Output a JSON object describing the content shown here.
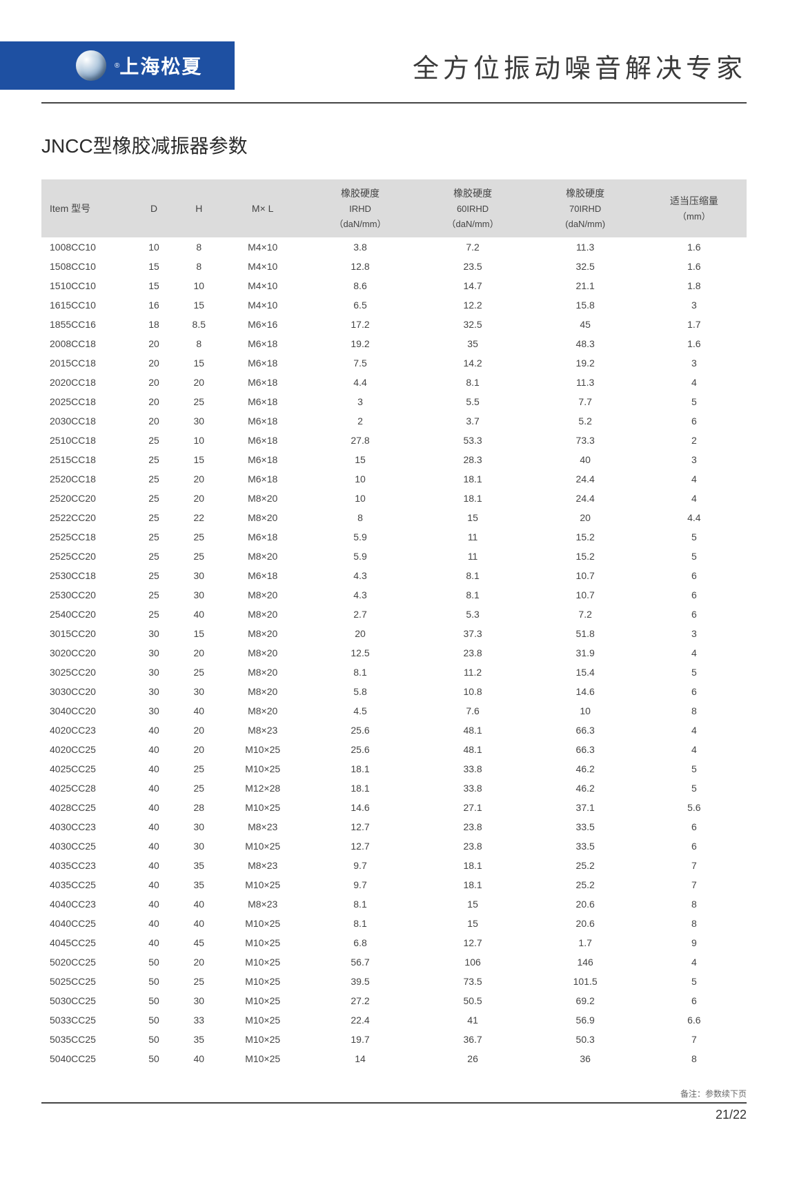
{
  "header": {
    "brand": "上海松夏",
    "reg": "®",
    "tagline": "全方位振动噪音解决专家"
  },
  "title": "JNCC型橡胶减振器参数",
  "table": {
    "columns": [
      {
        "label": "Item 型号",
        "sub": ""
      },
      {
        "label": "D",
        "sub": ""
      },
      {
        "label": "H",
        "sub": ""
      },
      {
        "label": "M× L",
        "sub": ""
      },
      {
        "label": "橡胶硬度",
        "sub2": "IRHD",
        "sub3": "（daN/mm）"
      },
      {
        "label": "橡胶硬度",
        "sub2": "60IRHD",
        "sub3": "（daN/mm）"
      },
      {
        "label": "橡胶硬度",
        "sub2": "70IRHD",
        "sub3": "(daN/mm)"
      },
      {
        "label": "适当压缩量",
        "sub3": "（mm）"
      }
    ],
    "rows": [
      [
        "1008CC10",
        "10",
        "8",
        "M4×10",
        "3.8",
        "7.2",
        "11.3",
        "1.6"
      ],
      [
        "1508CC10",
        "15",
        "8",
        "M4×10",
        "12.8",
        "23.5",
        "32.5",
        "1.6"
      ],
      [
        "1510CC10",
        "15",
        "10",
        "M4×10",
        "8.6",
        "14.7",
        "21.1",
        "1.8"
      ],
      [
        "1615CC10",
        "16",
        "15",
        "M4×10",
        "6.5",
        "12.2",
        "15.8",
        "3"
      ],
      [
        "1855CC16",
        "18",
        "8.5",
        "M6×16",
        "17.2",
        "32.5",
        "45",
        "1.7"
      ],
      [
        "2008CC18",
        "20",
        "8",
        "M6×18",
        "19.2",
        "35",
        "48.3",
        "1.6"
      ],
      [
        "2015CC18",
        "20",
        "15",
        "M6×18",
        "7.5",
        "14.2",
        "19.2",
        "3"
      ],
      [
        "2020CC18",
        "20",
        "20",
        "M6×18",
        "4.4",
        "8.1",
        "11.3",
        "4"
      ],
      [
        "2025CC18",
        "20",
        "25",
        "M6×18",
        "3",
        "5.5",
        "7.7",
        "5"
      ],
      [
        "2030CC18",
        "20",
        "30",
        "M6×18",
        "2",
        "3.7",
        "5.2",
        "6"
      ],
      [
        "2510CC18",
        "25",
        "10",
        "M6×18",
        "27.8",
        "53.3",
        "73.3",
        "2"
      ],
      [
        "2515CC18",
        "25",
        "15",
        "M6×18",
        "15",
        "28.3",
        "40",
        "3"
      ],
      [
        "2520CC18",
        "25",
        "20",
        "M6×18",
        "10",
        "18.1",
        "24.4",
        "4"
      ],
      [
        "2520CC20",
        "25",
        "20",
        "M8×20",
        "10",
        "18.1",
        "24.4",
        "4"
      ],
      [
        "2522CC20",
        "25",
        "22",
        "M8×20",
        "8",
        "15",
        "20",
        "4.4"
      ],
      [
        "2525CC18",
        "25",
        "25",
        "M6×18",
        "5.9",
        "11",
        "15.2",
        "5"
      ],
      [
        "2525CC20",
        "25",
        "25",
        "M8×20",
        "5.9",
        "11",
        "15.2",
        "5"
      ],
      [
        "2530CC18",
        "25",
        "30",
        "M6×18",
        "4.3",
        "8.1",
        "10.7",
        "6"
      ],
      [
        "2530CC20",
        "25",
        "30",
        "M8×20",
        "4.3",
        "8.1",
        "10.7",
        "6"
      ],
      [
        "2540CC20",
        "25",
        "40",
        "M8×20",
        "2.7",
        "5.3",
        "7.2",
        "6"
      ],
      [
        "3015CC20",
        "30",
        "15",
        "M8×20",
        "20",
        "37.3",
        "51.8",
        "3"
      ],
      [
        "3020CC20",
        "30",
        "20",
        "M8×20",
        "12.5",
        "23.8",
        "31.9",
        "4"
      ],
      [
        "3025CC20",
        "30",
        "25",
        "M8×20",
        "8.1",
        "11.2",
        "15.4",
        "5"
      ],
      [
        "3030CC20",
        "30",
        "30",
        "M8×20",
        "5.8",
        "10.8",
        "14.6",
        "6"
      ],
      [
        "3040CC20",
        "30",
        "40",
        "M8×20",
        "4.5",
        "7.6",
        "10",
        "8"
      ],
      [
        "4020CC23",
        "40",
        "20",
        "M8×23",
        "25.6",
        "48.1",
        "66.3",
        "4"
      ],
      [
        "4020CC25",
        "40",
        "20",
        "M10×25",
        "25.6",
        "48.1",
        "66.3",
        "4"
      ],
      [
        "4025CC25",
        "40",
        "25",
        "M10×25",
        "18.1",
        "33.8",
        "46.2",
        "5"
      ],
      [
        "4025CC28",
        "40",
        "25",
        "M12×28",
        "18.1",
        "33.8",
        "46.2",
        "5"
      ],
      [
        "4028CC25",
        "40",
        "28",
        "M10×25",
        "14.6",
        "27.1",
        "37.1",
        "5.6"
      ],
      [
        "4030CC23",
        "40",
        "30",
        "M8×23",
        "12.7",
        "23.8",
        "33.5",
        "6"
      ],
      [
        "4030CC25",
        "40",
        "30",
        "M10×25",
        "12.7",
        "23.8",
        "33.5",
        "6"
      ],
      [
        "4035CC23",
        "40",
        "35",
        "M8×23",
        "9.7",
        "18.1",
        "25.2",
        "7"
      ],
      [
        "4035CC25",
        "40",
        "35",
        "M10×25",
        "9.7",
        "18.1",
        "25.2",
        "7"
      ],
      [
        "4040CC23",
        "40",
        "40",
        "M8×23",
        "8.1",
        "15",
        "20.6",
        "8"
      ],
      [
        "4040CC25",
        "40",
        "40",
        "M10×25",
        "8.1",
        "15",
        "20.6",
        "8"
      ],
      [
        "4045CC25",
        "40",
        "45",
        "M10×25",
        "6.8",
        "12.7",
        "1.7",
        "9"
      ],
      [
        "5020CC25",
        "50",
        "20",
        "M10×25",
        "56.7",
        "106",
        "146",
        "4"
      ],
      [
        "5025CC25",
        "50",
        "25",
        "M10×25",
        "39.5",
        "73.5",
        "101.5",
        "5"
      ],
      [
        "5030CC25",
        "50",
        "30",
        "M10×25",
        "27.2",
        "50.5",
        "69.2",
        "6"
      ],
      [
        "5033CC25",
        "50",
        "33",
        "M10×25",
        "22.4",
        "41",
        "56.9",
        "6.6"
      ],
      [
        "5035CC25",
        "50",
        "35",
        "M10×25",
        "19.7",
        "36.7",
        "50.3",
        "7"
      ],
      [
        "5040CC25",
        "50",
        "40",
        "M10×25",
        "14",
        "26",
        "36",
        "8"
      ]
    ]
  },
  "footnote": "备注：参数续下页",
  "page_number": "21/22",
  "styling": {
    "header_bg": "#1e50a2",
    "thead_bg": "#dcdcdc",
    "text_color": "#444444",
    "divider_color": "#444444",
    "body_fontsize": 14,
    "title_fontsize": 28,
    "tagline_fontsize": 38
  }
}
